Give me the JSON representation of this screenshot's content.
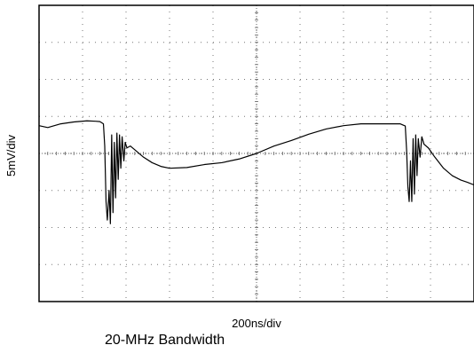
{
  "chart_data": {
    "type": "line",
    "title": "",
    "xlabel": "200ns/div",
    "ylabel": "5mV/div",
    "caption": "20-MHz Bandwidth",
    "grid": true,
    "x_divisions": 10,
    "y_divisions": 8,
    "xlim": [
      -5,
      5
    ],
    "ylim": [
      -4,
      4
    ],
    "series": [
      {
        "color": "#000000",
        "points": [
          [
            -5.0,
            0.75
          ],
          [
            -4.8,
            0.7
          ],
          [
            -4.5,
            0.8
          ],
          [
            -4.2,
            0.85
          ],
          [
            -3.9,
            0.88
          ],
          [
            -3.7,
            0.87
          ],
          [
            -3.6,
            0.86
          ],
          [
            -3.52,
            0.8
          ],
          [
            -3.49,
            0.2
          ],
          [
            -3.46,
            -1.3
          ],
          [
            -3.43,
            -1.8
          ],
          [
            -3.39,
            -1.0
          ],
          [
            -3.36,
            -1.9
          ],
          [
            -3.33,
            0.5
          ],
          [
            -3.3,
            -1.6
          ],
          [
            -3.27,
            0.3
          ],
          [
            -3.24,
            -1.2
          ],
          [
            -3.21,
            0.55
          ],
          [
            -3.18,
            -0.7
          ],
          [
            -3.15,
            0.5
          ],
          [
            -3.12,
            -0.4
          ],
          [
            -3.09,
            0.45
          ],
          [
            -3.05,
            -0.2
          ],
          [
            -3.02,
            0.3
          ],
          [
            -2.98,
            0.15
          ],
          [
            -2.9,
            0.2
          ],
          [
            -2.8,
            0.1
          ],
          [
            -2.6,
            -0.1
          ],
          [
            -2.4,
            -0.25
          ],
          [
            -2.2,
            -0.35
          ],
          [
            -2.0,
            -0.4
          ],
          [
            -1.6,
            -0.38
          ],
          [
            -1.2,
            -0.3
          ],
          [
            -0.8,
            -0.25
          ],
          [
            -0.4,
            -0.15
          ],
          [
            0.0,
            0.0
          ],
          [
            0.4,
            0.2
          ],
          [
            0.8,
            0.35
          ],
          [
            1.2,
            0.52
          ],
          [
            1.6,
            0.66
          ],
          [
            2.0,
            0.75
          ],
          [
            2.4,
            0.8
          ],
          [
            2.8,
            0.8
          ],
          [
            3.1,
            0.8
          ],
          [
            3.3,
            0.8
          ],
          [
            3.42,
            0.74
          ],
          [
            3.45,
            0.1
          ],
          [
            3.48,
            -0.9
          ],
          [
            3.51,
            -1.3
          ],
          [
            3.54,
            -0.2
          ],
          [
            3.57,
            -1.3
          ],
          [
            3.6,
            0.4
          ],
          [
            3.63,
            -1.1
          ],
          [
            3.66,
            0.5
          ],
          [
            3.69,
            -0.6
          ],
          [
            3.72,
            0.4
          ],
          [
            3.76,
            -0.1
          ],
          [
            3.8,
            0.45
          ],
          [
            3.85,
            0.25
          ],
          [
            3.95,
            0.15
          ],
          [
            4.1,
            -0.1
          ],
          [
            4.3,
            -0.4
          ],
          [
            4.5,
            -0.6
          ],
          [
            4.7,
            -0.72
          ],
          [
            4.85,
            -0.78
          ],
          [
            5.0,
            -0.85
          ]
        ]
      }
    ]
  }
}
